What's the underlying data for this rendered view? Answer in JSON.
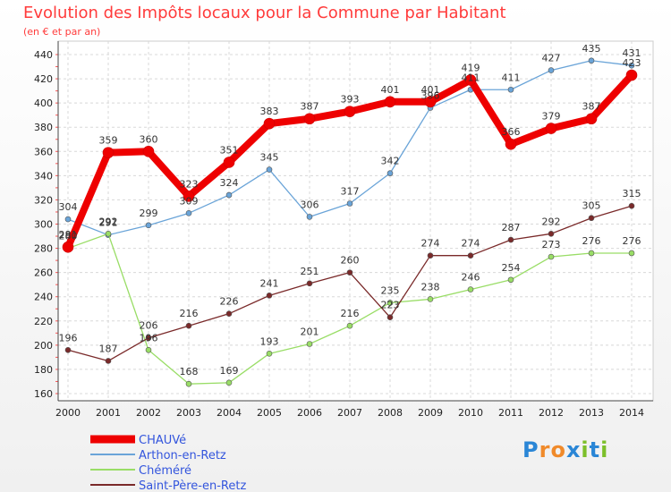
{
  "title": "Evolution des Impôts locaux pour la Commune par Habitant",
  "subtitle": "(en € et par an)",
  "logo": {
    "letters": [
      "P",
      "r",
      "o",
      "x",
      "i",
      "t",
      "i"
    ],
    "colors": [
      "#2a86d6",
      "#f08a2a",
      "#f08a2a",
      "#2a86d6",
      "#7cbf2a",
      "#2a86d6",
      "#7cbf2a"
    ]
  },
  "chart_data": {
    "type": "line",
    "x": [
      "2000",
      "2001",
      "2002",
      "2003",
      "2004",
      "2005",
      "2006",
      "2007",
      "2008",
      "2009",
      "2010",
      "2011",
      "2012",
      "2013",
      "2014"
    ],
    "ylim": [
      160,
      440
    ],
    "yticks": [
      160,
      180,
      200,
      220,
      240,
      260,
      280,
      300,
      320,
      340,
      360,
      380,
      400,
      420,
      440
    ],
    "grid": true,
    "legend_position": "bottom-left",
    "series": [
      {
        "name": "CHAUVé",
        "color": "#ee0000",
        "width": 8,
        "values": [
          281,
          359,
          360,
          323,
          351,
          383,
          387,
          393,
          401,
          401,
          419,
          366,
          379,
          387,
          423
        ]
      },
      {
        "name": "Arthon-en-Retz",
        "color": "#6aa4d8",
        "width": 1.3,
        "values": [
          304,
          291,
          299,
          309,
          324,
          345,
          306,
          317,
          342,
          396,
          411,
          411,
          427,
          435,
          431
        ]
      },
      {
        "name": "Chéméré",
        "color": "#99dd66",
        "width": 1.3,
        "values": [
          280,
          292,
          196,
          168,
          169,
          193,
          201,
          216,
          235,
          238,
          246,
          254,
          273,
          276,
          276
        ]
      },
      {
        "name": "Saint-Père-en-Retz",
        "color": "#7a2a2a",
        "width": 1.3,
        "values": [
          196,
          187,
          206,
          216,
          226,
          241,
          251,
          260,
          223,
          274,
          274,
          287,
          292,
          305,
          315
        ]
      }
    ]
  }
}
